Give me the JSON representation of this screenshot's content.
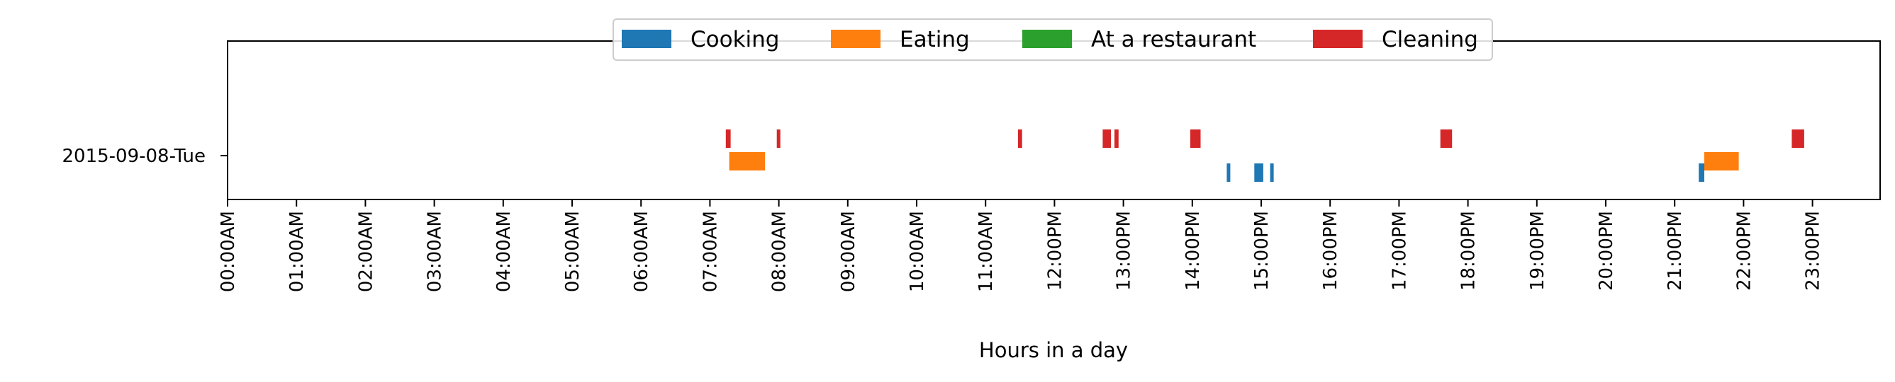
{
  "chart_data": {
    "type": "timeline",
    "title": "",
    "xlabel": "Hours in a day",
    "ylabel": "",
    "y_categories": [
      "2015-09-08-Tue"
    ],
    "x_unit": "hours",
    "xlim": [
      0,
      24
    ],
    "x_ticks": [
      0,
      1,
      2,
      3,
      4,
      5,
      6,
      7,
      8,
      9,
      10,
      11,
      12,
      13,
      14,
      15,
      16,
      17,
      18,
      19,
      20,
      21,
      22,
      23
    ],
    "x_tick_labels": [
      "00:00AM",
      "01:00AM",
      "02:00AM",
      "03:00AM",
      "04:00AM",
      "05:00AM",
      "06:00AM",
      "07:00AM",
      "08:00AM",
      "09:00AM",
      "10:00AM",
      "11:00AM",
      "12:00PM",
      "13:00PM",
      "14:00PM",
      "15:00PM",
      "16:00PM",
      "17:00PM",
      "18:00PM",
      "19:00PM",
      "20:00PM",
      "21:00PM",
      "22:00PM",
      "23:00PM"
    ],
    "legend_position": "top-center",
    "grid": false,
    "series": [
      {
        "name": "Cooking",
        "color": "#1f77b4",
        "intervals": [
          [
            14.5,
            14.55
          ],
          [
            14.9,
            15.03
          ],
          [
            15.13,
            15.18
          ],
          [
            21.35,
            21.43
          ]
        ]
      },
      {
        "name": "Eating",
        "color": "#ff7f0e",
        "intervals": [
          [
            7.28,
            7.8
          ],
          [
            21.43,
            21.93
          ]
        ]
      },
      {
        "name": "At a restaurant",
        "color": "#2ca02c",
        "intervals": []
      },
      {
        "name": "Cleaning",
        "color": "#d62728",
        "intervals": [
          [
            7.23,
            7.3
          ],
          [
            7.97,
            8.0
          ],
          [
            11.47,
            11.53
          ],
          [
            12.7,
            12.82
          ],
          [
            12.87,
            12.93
          ],
          [
            13.97,
            14.12
          ],
          [
            17.6,
            17.77
          ],
          [
            22.7,
            22.88
          ]
        ]
      }
    ]
  }
}
